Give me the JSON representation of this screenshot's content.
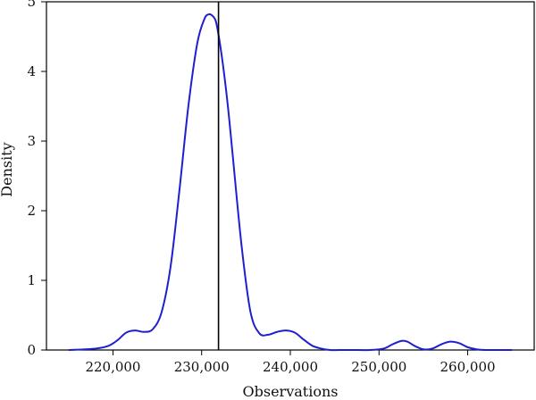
{
  "chart_data": {
    "type": "line",
    "xlabel": "Observations",
    "ylabel": "Density",
    "xlim": [
      212500,
      267500
    ],
    "ylim": [
      0,
      5
    ],
    "x_ticks": [
      220000,
      230000,
      240000,
      250000,
      260000
    ],
    "x_tick_labels": [
      "220,000",
      "230,000",
      "240,000",
      "250,000",
      "260,000"
    ],
    "y_ticks": [
      0,
      1,
      2,
      3,
      4,
      5
    ],
    "y_tick_labels": [
      "0",
      "1",
      "2",
      "3",
      "4",
      "5"
    ],
    "reference_line_x": 231900,
    "grid": false,
    "legend": "none",
    "series": [
      {
        "color": "#1f1fd1",
        "x": [
          215000,
          218000,
          219500,
          220500,
          221500,
          222500,
          223500,
          224500,
          225500,
          226500,
          227500,
          228500,
          229500,
          230300,
          230800,
          231200,
          231600,
          232000,
          232500,
          233000,
          233500,
          234500,
          235500,
          236500,
          237500,
          238500,
          239500,
          240500,
          241500,
          242500,
          243500,
          244500,
          245500,
          247000,
          249000,
          250500,
          251500,
          252500,
          253200,
          254000,
          255000,
          256000,
          257000,
          258000,
          259000,
          260000,
          261000,
          262000,
          263500,
          265000
        ],
        "y": [
          0.0,
          0.02,
          0.06,
          0.14,
          0.25,
          0.28,
          0.26,
          0.3,
          0.55,
          1.2,
          2.3,
          3.5,
          4.4,
          4.75,
          4.82,
          4.8,
          4.72,
          4.45,
          4.0,
          3.45,
          2.8,
          1.5,
          0.55,
          0.24,
          0.22,
          0.26,
          0.28,
          0.25,
          0.15,
          0.06,
          0.02,
          0.0,
          0.0,
          0.0,
          0.0,
          0.02,
          0.08,
          0.13,
          0.12,
          0.06,
          0.01,
          0.02,
          0.08,
          0.12,
          0.1,
          0.04,
          0.01,
          0.0,
          0.0,
          0.0
        ]
      }
    ]
  }
}
